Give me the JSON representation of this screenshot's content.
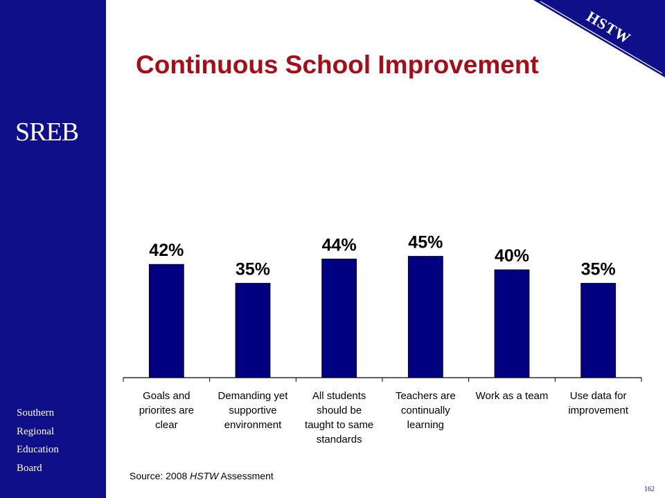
{
  "slide": {
    "title": "Continuous School Improvement",
    "logo_text": "SREB",
    "org_lines": [
      "Southern",
      "Regional",
      "Education",
      "Board"
    ],
    "corner_label": "HSTW",
    "source_prefix": "Source: 2008 ",
    "source_italic": "HSTW",
    "source_suffix": " Assessment",
    "page_number": "162",
    "colors": {
      "sidebar": "#0f0f8a",
      "title": "#a50e18",
      "bar": "#000080"
    }
  },
  "chart_data": {
    "type": "bar",
    "title": "",
    "xlabel": "",
    "ylabel": "",
    "ylim": [
      0,
      60
    ],
    "grid": false,
    "categories": [
      [
        "Goals and",
        "priorites are",
        "clear"
      ],
      [
        "Demanding yet",
        "supportive",
        "environment"
      ],
      [
        "All students",
        "should be",
        "taught to same",
        "standards"
      ],
      [
        "Teachers are",
        "continually",
        "learning"
      ],
      [
        "Work as a team"
      ],
      [
        "Use data for",
        "improvement"
      ]
    ],
    "values": [
      42,
      35,
      44,
      45,
      40,
      35
    ],
    "data_labels": [
      "42%",
      "35%",
      "44%",
      "45%",
      "40%",
      "35%"
    ]
  }
}
